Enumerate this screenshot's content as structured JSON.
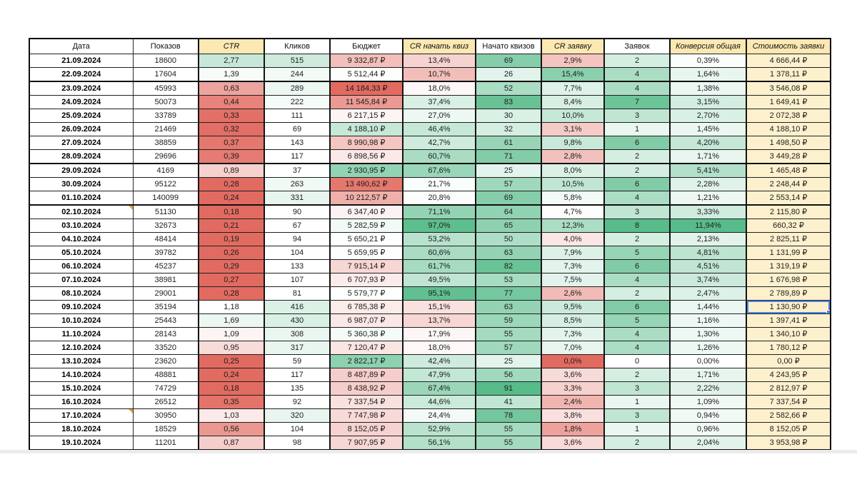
{
  "sheet": {
    "columns": [
      {
        "key": "date",
        "label": "Дата",
        "italic": false,
        "width": 145
      },
      {
        "key": "impressions",
        "label": "Показов",
        "italic": false,
        "width": 92
      },
      {
        "key": "ctr",
        "label": "CTR",
        "italic": true,
        "width": 92
      },
      {
        "key": "clicks",
        "label": "Кликов",
        "italic": false,
        "width": 92
      },
      {
        "key": "budget",
        "label": "Бюджет",
        "italic": false,
        "width": 102
      },
      {
        "key": "cr_quiz_start",
        "label": "CR начать квиз",
        "italic": true,
        "width": 102
      },
      {
        "key": "quiz_started",
        "label": "Начато квизов",
        "italic": false,
        "width": 92
      },
      {
        "key": "cr_lead",
        "label": "CR заявку",
        "italic": true,
        "width": 88
      },
      {
        "key": "leads",
        "label": "Заявок",
        "italic": false,
        "width": 92
      },
      {
        "key": "conversion_total",
        "label": "Конверсия общая",
        "italic": true,
        "width": 107
      },
      {
        "key": "cost_per_lead",
        "label": "Стоимость заявки",
        "italic": true,
        "width": 118
      }
    ],
    "rows": [
      [
        "21.09.2024",
        "18600",
        "2,77",
        "515",
        "9 332,87 ₽",
        "13,4%",
        "69",
        "2,9%",
        "2",
        "0,39%",
        "4 666,44 ₽"
      ],
      [
        "22.09.2024",
        "17604",
        "1,39",
        "244",
        "5 512,44 ₽",
        "10,7%",
        "26",
        "15,4%",
        "4",
        "1,64%",
        "1 378,11 ₽"
      ],
      [
        "23.09.2024",
        "45993",
        "0,63",
        "289",
        "14 184,33 ₽",
        "18,0%",
        "52",
        "7,7%",
        "4",
        "1,38%",
        "3 546,08 ₽"
      ],
      [
        "24.09.2024",
        "50073",
        "0,44",
        "222",
        "11 545,84 ₽",
        "37,4%",
        "83",
        "8,4%",
        "7",
        "3,15%",
        "1 649,41 ₽"
      ],
      [
        "25.09.2024",
        "33789",
        "0,33",
        "111",
        "6 217,15 ₽",
        "27,0%",
        "30",
        "10,0%",
        "3",
        "2,70%",
        "2 072,38 ₽"
      ],
      [
        "26.09.2024",
        "21469",
        "0,32",
        "69",
        "4 188,10 ₽",
        "46,4%",
        "32",
        "3,1%",
        "1",
        "1,45%",
        "4 188,10 ₽"
      ],
      [
        "27.09.2024",
        "38859",
        "0,37",
        "143",
        "8 990,98 ₽",
        "42,7%",
        "61",
        "9,8%",
        "6",
        "4,20%",
        "1 498,50 ₽"
      ],
      [
        "28.09.2024",
        "29696",
        "0,39",
        "117",
        "6 898,56 ₽",
        "60,7%",
        "71",
        "2,8%",
        "2",
        "1,71%",
        "3 449,28 ₽"
      ],
      [
        "29.09.2024",
        "4169",
        "0,89",
        "37",
        "2 930,95 ₽",
        "67,6%",
        "25",
        "8,0%",
        "2",
        "5,41%",
        "1 465,48 ₽"
      ],
      [
        "30.09.2024",
        "95122",
        "0,28",
        "263",
        "13 490,62 ₽",
        "21,7%",
        "57",
        "10,5%",
        "6",
        "2,28%",
        "2 248,44 ₽"
      ],
      [
        "01.10.2024",
        "140099",
        "0,24",
        "331",
        "10 212,57 ₽",
        "20,8%",
        "69",
        "5,8%",
        "4",
        "1,21%",
        "2 553,14 ₽"
      ],
      [
        "02.10.2024",
        "51130",
        "0,18",
        "90",
        "6 347,40 ₽",
        "71,1%",
        "64",
        "4,7%",
        "3",
        "3,33%",
        "2 115,80 ₽"
      ],
      [
        "03.10.2024",
        "32673",
        "0,21",
        "67",
        "5 282,59 ₽",
        "97,0%",
        "65",
        "12,3%",
        "8",
        "11,94%",
        "660,32 ₽"
      ],
      [
        "04.10.2024",
        "48414",
        "0,19",
        "94",
        "5 650,21 ₽",
        "53,2%",
        "50",
        "4,0%",
        "2",
        "2,13%",
        "2 825,11 ₽"
      ],
      [
        "05.10.2024",
        "39782",
        "0,26",
        "104",
        "5 659,95 ₽",
        "60,6%",
        "63",
        "7,9%",
        "5",
        "4,81%",
        "1 131,99 ₽"
      ],
      [
        "06.10.2024",
        "45237",
        "0,29",
        "133",
        "7 915,14 ₽",
        "61,7%",
        "82",
        "7,3%",
        "6",
        "4,51%",
        "1 319,19 ₽"
      ],
      [
        "07.10.2024",
        "38981",
        "0,27",
        "107",
        "6 707,93 ₽",
        "49,5%",
        "53",
        "7,5%",
        "4",
        "3,74%",
        "1 676,98 ₽"
      ],
      [
        "08.10.2024",
        "29001",
        "0,28",
        "81",
        "5 579,77 ₽",
        "95,1%",
        "77",
        "2,6%",
        "2",
        "2,47%",
        "2 789,89 ₽"
      ],
      [
        "09.10.2024",
        "35194",
        "1,18",
        "416",
        "6 785,38 ₽",
        "15,1%",
        "63",
        "9,5%",
        "6",
        "1,44%",
        "1 130,90 ₽"
      ],
      [
        "10.10.2024",
        "25443",
        "1,69",
        "430",
        "6 987,07 ₽",
        "13,7%",
        "59",
        "8,5%",
        "5",
        "1,16%",
        "1 397,41 ₽"
      ],
      [
        "11.10.2024",
        "28143",
        "1,09",
        "308",
        "5 360,38 ₽",
        "17,9%",
        "55",
        "7,3%",
        "4",
        "1,30%",
        "1 340,10 ₽"
      ],
      [
        "12.10.2024",
        "33520",
        "0,95",
        "317",
        "7 120,47 ₽",
        "18,0%",
        "57",
        "7,0%",
        "4",
        "1,26%",
        "1 780,12 ₽"
      ],
      [
        "13.10.2024",
        "23620",
        "0,25",
        "59",
        "2 822,17 ₽",
        "42,4%",
        "25",
        "0,0%",
        "0",
        "0,00%",
        "0,00 ₽"
      ],
      [
        "14.10.2024",
        "48881",
        "0,24",
        "117",
        "8 487,89 ₽",
        "47,9%",
        "56",
        "3,6%",
        "2",
        "1,71%",
        "4 243,95 ₽"
      ],
      [
        "15.10.2024",
        "74729",
        "0,18",
        "135",
        "8 438,92 ₽",
        "67,4%",
        "91",
        "3,3%",
        "3",
        "2,22%",
        "2 812,97 ₽"
      ],
      [
        "16.10.2024",
        "26512",
        "0,35",
        "92",
        "7 337,54 ₽",
        "44,6%",
        "41",
        "2,4%",
        "1",
        "1,09%",
        "7 337,54 ₽"
      ],
      [
        "17.10.2024",
        "30950",
        "1,03",
        "320",
        "7 747,98 ₽",
        "24,4%",
        "78",
        "3,8%",
        "3",
        "0,94%",
        "2 582,66 ₽"
      ],
      [
        "18.10.2024",
        "18529",
        "0,56",
        "104",
        "8 152,05 ₽",
        "52,9%",
        "55",
        "1,8%",
        "1",
        "0,96%",
        "8 152,05 ₽"
      ],
      [
        "19.10.2024",
        "11201",
        "0,87",
        "98",
        "7 907,95 ₽",
        "56,1%",
        "55",
        "3,6%",
        "2",
        "2,04%",
        "3 953,98 ₽"
      ]
    ],
    "note_marker_rows": [
      11,
      26
    ],
    "selected_cell": {
      "row": 18,
      "col": 10
    },
    "thick_vertical_after_cols": [
      1,
      2,
      3,
      4,
      5,
      6,
      7,
      8,
      9
    ],
    "thick_horizontal_after_rows": [
      1,
      7,
      10
    ],
    "conditional_formatting": {
      "palette": {
        "red": "#e26b61",
        "green": "#57bb8a",
        "neutral": "#ffffff",
        "cream_column": "#fdf1cd"
      },
      "scales": {
        "ctr": {
          "mid": 1.15,
          "red_at": 0.3,
          "green_at": 6
        },
        "clicks": {
          "mid": 150,
          "red_at": null,
          "green_at": 1400
        },
        "budget": {
          "mid": 5600,
          "red_at": 14200,
          "green_at": 1500
        },
        "cr_quiz_start": {
          "mid": 19,
          "red_at": 0,
          "green_at": 100
        },
        "quiz_started": {
          "mid": 12,
          "red_at": null,
          "green_at": 91
        },
        "cr_lead": {
          "mid": 4.8,
          "red_at": 0,
          "green_at": 20
        },
        "leads": {
          "mid": 0,
          "red_at": null,
          "green_at": 8
        },
        "conversion_total": {
          "mid": 0,
          "red_at": null,
          "green_at": 12
        },
        "cost_per_lead": {
          "fixed": "cream_column"
        }
      }
    },
    "colors": {
      "header_highlight_bg": "#fce8b2",
      "header_plain_bg": "#ffffff",
      "grid_line": "#1f1f1f",
      "selection_border": "#4a86e8",
      "note_marker": "#e8a33c"
    }
  }
}
